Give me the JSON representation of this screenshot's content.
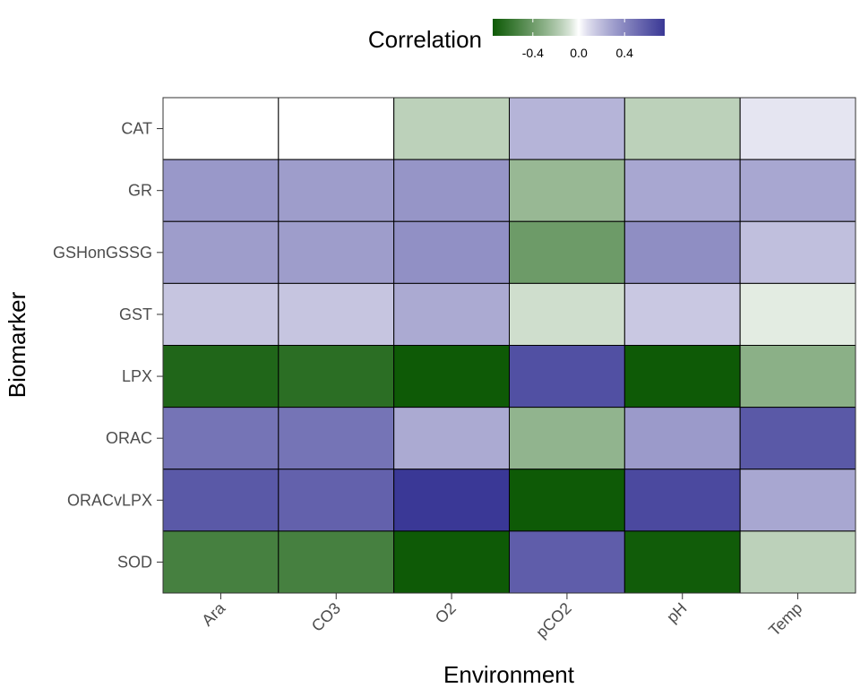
{
  "chart_data": {
    "type": "heatmap",
    "title": "",
    "xlabel": "Environment",
    "ylabel": "Biomarker",
    "x_categories": [
      "Ara",
      "CO3",
      "O2",
      "pCO2",
      "pH",
      "Temp"
    ],
    "y_categories": [
      "CAT",
      "GR",
      "GSHonGSSG",
      "GST",
      "LPX",
      "ORAC",
      "ORACvLPX",
      "SOD"
    ],
    "values": [
      [
        0.0,
        0.0,
        -0.15,
        0.22,
        -0.15,
        0.06
      ],
      [
        0.33,
        0.31,
        0.34,
        -0.26,
        0.27,
        0.27
      ],
      [
        0.31,
        0.31,
        0.36,
        -0.4,
        0.37,
        0.18
      ],
      [
        0.16,
        0.16,
        0.26,
        -0.1,
        0.15,
        -0.05
      ],
      [
        -0.68,
        -0.64,
        -0.97,
        0.64,
        -0.77,
        -0.3
      ],
      [
        0.48,
        0.48,
        0.26,
        -0.28,
        0.32,
        0.6
      ],
      [
        0.6,
        0.56,
        0.82,
        -0.77,
        0.67,
        0.27
      ],
      [
        -0.54,
        -0.54,
        -0.82,
        0.58,
        -0.74,
        -0.15
      ]
    ],
    "legend": {
      "title": "Correlation",
      "ticks": [
        -0.4,
        0.0,
        0.4
      ],
      "tick_labels": [
        "-0.4",
        "0.0",
        "0.4"
      ],
      "range": [
        -0.75,
        0.75
      ],
      "placement": "top"
    },
    "colors": {
      "low": "#0e5a06",
      "mid": "#ffffff",
      "high": "#3a3896"
    },
    "grid": false
  }
}
